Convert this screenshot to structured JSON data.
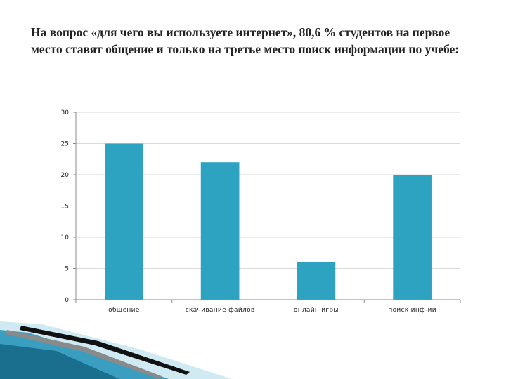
{
  "slide": {
    "title": "На вопрос «для чего вы используете интернет», 80,6 %  студентов на первое место ставят общение и только на третье место поиск информации по учебе:"
  },
  "colors": {
    "bar": "#2ea3c1",
    "grid": "#d9d9d9",
    "axis": "#8c8c8c",
    "deco_light": "#7fc6dd",
    "deco_dark": "#1a6f8f",
    "deco_black": "#111111"
  },
  "chart_data": {
    "type": "bar",
    "categories": [
      "общение",
      "скачивание файлов",
      "онлайн игры",
      "поиск инф-ии"
    ],
    "values": [
      25,
      22,
      6,
      20
    ],
    "title": "",
    "xlabel": "",
    "ylabel": "",
    "ylim": [
      0,
      30
    ],
    "yticks": [
      0,
      5,
      10,
      15,
      20,
      25,
      30
    ],
    "grid": true,
    "legend": "none"
  }
}
